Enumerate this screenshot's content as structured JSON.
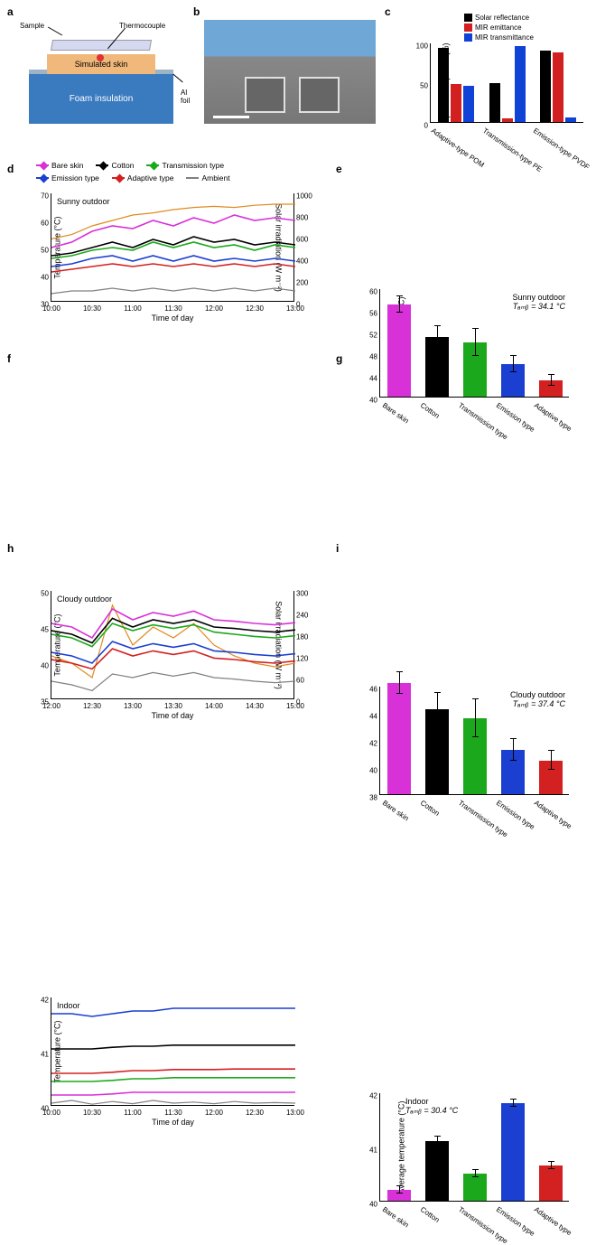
{
  "labels": {
    "a": "a",
    "b": "b",
    "c": "c",
    "d": "d",
    "e": "e",
    "f": "f",
    "g": "g",
    "h": "h",
    "i": "i"
  },
  "panel_a": {
    "sample": "Sample",
    "thermocouple": "Thermocouple",
    "simulated_skin": "Simulated skin",
    "foam": "Foam insulation",
    "al_foil": "Al foil"
  },
  "panel_c": {
    "ylabel": "Spectral response (%)",
    "legend": [
      "Solar reflectance",
      "MIR emittance",
      "MIR transmittance"
    ],
    "legend_colors": [
      "#000000",
      "#d21f1f",
      "#1142d6"
    ],
    "categories": [
      "Adaptive-type POM",
      "Transmission-type PE",
      "Emission-type PVDF"
    ],
    "values": {
      "Solar reflectance": [
        93,
        49,
        90
      ],
      "MIR emittance": [
        48,
        4,
        88
      ],
      "MIR transmittance": [
        46,
        95,
        6
      ]
    },
    "ylim": [
      0,
      100
    ],
    "ytick_step": 50
  },
  "shared_legend": {
    "items": [
      {
        "label": "Bare skin",
        "color": "#d831d8"
      },
      {
        "label": "Cotton",
        "color": "#000000"
      },
      {
        "label": "Transmission type",
        "color": "#1ca81c"
      },
      {
        "label": "Emission type",
        "color": "#1a3fd1"
      },
      {
        "label": "Adaptive type",
        "color": "#d32020"
      },
      {
        "label": "Ambient",
        "color": "#808080"
      }
    ]
  },
  "panel_d": {
    "title": "Sunny outdoor",
    "ylabel": "Temperature (°C)",
    "ylabel2": "Solar irradiation (W m⁻²)",
    "xlabel": "Time of day",
    "ylim": [
      30,
      70
    ],
    "ylim2": [
      0,
      1000
    ],
    "xticks": [
      "10:00",
      "10:30",
      "11:00",
      "11:30",
      "12:00",
      "12:30",
      "13:00"
    ],
    "series_colors": {
      "bare": "#d831d8",
      "cotton": "#000000",
      "trans": "#1ca81c",
      "emis": "#1a3fd1",
      "adapt": "#d32020",
      "ambient": "#808080",
      "solar": "#e08a1f"
    },
    "series": {
      "solar": [
        580,
        620,
        700,
        750,
        800,
        820,
        850,
        870,
        880,
        870,
        890,
        900,
        900
      ],
      "bare": [
        50,
        52,
        56,
        58,
        57,
        60,
        58,
        61,
        59,
        62,
        60,
        61,
        60
      ],
      "cotton": [
        47,
        48,
        50,
        52,
        50,
        53,
        51,
        54,
        52,
        53,
        51,
        52,
        51
      ],
      "trans": [
        46,
        47,
        49,
        50,
        49,
        52,
        50,
        52,
        50,
        51,
        49,
        51,
        50
      ],
      "emis": [
        43,
        44,
        46,
        47,
        45,
        47,
        45,
        47,
        45,
        46,
        45,
        46,
        45
      ],
      "adapt": [
        41,
        42,
        43,
        44,
        43,
        44,
        43,
        44,
        43,
        44,
        43,
        44,
        43
      ],
      "ambient": [
        33,
        34,
        34,
        35,
        34,
        35,
        34,
        35,
        34,
        35,
        34,
        35,
        34
      ]
    }
  },
  "panel_e": {
    "ylabel": "Average temperature (°C)",
    "condition": "Sunny outdoor",
    "tamb": "Tₐₘᵦ = 34.1 °C",
    "categories": [
      "Bare skin",
      "Cotton",
      "Transmission type",
      "Emission type",
      "Adaptive type"
    ],
    "colors": [
      "#d831d8",
      "#000000",
      "#1ca81c",
      "#1a3fd1",
      "#d32020"
    ],
    "values": [
      57,
      51,
      50,
      46,
      43
    ],
    "err": [
      1.5,
      2,
      2.5,
      1.5,
      1
    ],
    "ylim": [
      40,
      60
    ],
    "yticks": [
      40,
      44,
      48,
      52,
      56,
      60
    ]
  },
  "panel_f": {
    "title": "Cloudy outdoor",
    "ylabel": "Temperature (°C)",
    "ylabel2": "Solar irradiation (W m⁻²)",
    "xlabel": "Time of day",
    "ylim": [
      35,
      50
    ],
    "ylim2": [
      0,
      300
    ],
    "xticks": [
      "12:00",
      "12:30",
      "13:00",
      "13:30",
      "14:00",
      "14:30",
      "15:00"
    ],
    "series_colors": {
      "bare": "#d831d8",
      "cotton": "#000000",
      "trans": "#1ca81c",
      "emis": "#1a3fd1",
      "adapt": "#d32020",
      "ambient": "#808080",
      "solar": "#e08a1f"
    },
    "series": {
      "solar": [
        120,
        100,
        60,
        260,
        150,
        200,
        170,
        210,
        150,
        120,
        100,
        90,
        100
      ],
      "bare": [
        45.5,
        45,
        43.5,
        47.5,
        46,
        47,
        46.5,
        47.2,
        46,
        45.8,
        45.5,
        45.3,
        45.6
      ],
      "cotton": [
        44.5,
        44,
        42.8,
        46.2,
        45,
        46,
        45.5,
        46,
        45,
        44.8,
        44.5,
        44.3,
        44.6
      ],
      "trans": [
        44,
        43.5,
        42.3,
        45.5,
        44.5,
        45.3,
        44.8,
        45.3,
        44.3,
        44,
        43.7,
        43.5,
        43.8
      ],
      "emis": [
        41.5,
        41,
        40,
        43,
        42,
        42.7,
        42.2,
        42.7,
        41.7,
        41.5,
        41.2,
        41,
        41.3
      ],
      "adapt": [
        40.5,
        40,
        39.2,
        42,
        41,
        41.7,
        41.2,
        41.7,
        40.7,
        40.5,
        40.2,
        40,
        40.3
      ],
      "ambient": [
        37.5,
        37,
        36.2,
        38.5,
        38,
        38.7,
        38.2,
        38.7,
        38,
        37.8,
        37.5,
        37.3,
        37.5
      ]
    }
  },
  "panel_g": {
    "ylabel": "Average temperature (°C)",
    "condition": "Cloudy outdoor",
    "tamb": "Tₐₘᵦ = 37.4 °C",
    "categories": [
      "Bare skin",
      "Cotton",
      "Transmission type",
      "Emission type",
      "Adaptive type"
    ],
    "colors": [
      "#d831d8",
      "#000000",
      "#1ca81c",
      "#1a3fd1",
      "#d32020"
    ],
    "values": [
      46.2,
      44.3,
      43.6,
      41.3,
      40.5
    ],
    "err": [
      0.8,
      1.2,
      1.4,
      0.8,
      0.7
    ],
    "ylim": [
      38,
      46
    ],
    "yticks": [
      38,
      40,
      42,
      44,
      46
    ]
  },
  "panel_h": {
    "title": "Indoor",
    "ylabel": "Temperature (°C)",
    "xlabel": "Time of day",
    "ylim": [
      40,
      42
    ],
    "xticks": [
      "10:00",
      "10:30",
      "11:00",
      "11:30",
      "12:00",
      "12:30",
      "13:00"
    ],
    "series_colors": {
      "bare": "#d831d8",
      "cotton": "#000000",
      "trans": "#1ca81c",
      "emis": "#1a3fd1",
      "adapt": "#d32020",
      "ambient_scaled": "#808080"
    },
    "series": {
      "emis": [
        41.7,
        41.7,
        41.65,
        41.7,
        41.75,
        41.75,
        41.8,
        41.8,
        41.8,
        41.8,
        41.8,
        41.8,
        41.8
      ],
      "cotton": [
        41.05,
        41.05,
        41.05,
        41.08,
        41.1,
        41.1,
        41.12,
        41.12,
        41.12,
        41.12,
        41.12,
        41.12,
        41.12
      ],
      "adapt": [
        40.6,
        40.6,
        40.6,
        40.62,
        40.65,
        40.65,
        40.67,
        40.67,
        40.67,
        40.68,
        40.68,
        40.68,
        40.68
      ],
      "trans": [
        40.45,
        40.45,
        40.45,
        40.47,
        40.5,
        40.5,
        40.52,
        40.52,
        40.52,
        40.52,
        40.52,
        40.52,
        40.52
      ],
      "bare": [
        40.2,
        40.2,
        40.2,
        40.22,
        40.25,
        40.25,
        40.25,
        40.25,
        40.25,
        40.25,
        40.25,
        40.25,
        40.25
      ],
      "ambient_scaled": [
        40.05,
        40.1,
        40.03,
        40.08,
        40.04,
        40.1,
        40.05,
        40.07,
        40.04,
        40.08,
        40.05,
        40.06,
        40.05
      ]
    }
  },
  "panel_i": {
    "ylabel": "Average temperature (°C)",
    "condition": "Indoor",
    "tamb": "Tₐₘᵦ = 30.4 °C",
    "categories": [
      "Bare skin",
      "Cotton",
      "Transmission type",
      "Emission type",
      "Adaptive type"
    ],
    "colors": [
      "#d831d8",
      "#000000",
      "#1ca81c",
      "#1a3fd1",
      "#d32020"
    ],
    "values": [
      40.2,
      41.1,
      40.5,
      41.8,
      40.65
    ],
    "err": [
      0.07,
      0.08,
      0.07,
      0.07,
      0.07
    ],
    "ylim": [
      40,
      42
    ],
    "yticks": [
      40,
      41,
      42
    ]
  }
}
